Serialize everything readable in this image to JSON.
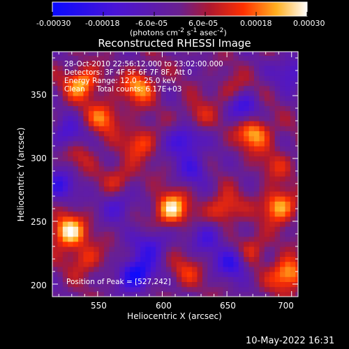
{
  "plot_title": "Reconstructed RHESSI Image",
  "colorbar": {
    "tick_labels": [
      "-0.00030",
      "-0.00018",
      "-6.0e-05",
      "6.0e-05",
      "0.00018",
      "0.00030"
    ],
    "unit_label_html": "(photons cm<sup>-2</sup> s<sup>-1</sup> asec<sup>-2</sup>)",
    "range": [
      -0.0003,
      0.0003
    ]
  },
  "annotations": [
    "28-Oct-2010 22:56:12.000 to 23:02:00.000",
    "Detectors: 3F 4F 5F 6F 7F 8F, Att 0",
    "Energy Range: 12.0 - 25.0 keV",
    "Clean     Total counts: 6.17E+03"
  ],
  "peak_label": "Position of Peak = [527,242]",
  "timestamp": "10-May-2022 16:31",
  "axes": {
    "xlabel": "Heliocentric X (arcsec)",
    "ylabel": "Heliocentric Y (arcsec)",
    "x_ticks": [
      "550",
      "600",
      "650",
      "700"
    ],
    "y_ticks": [
      "200",
      "250",
      "300",
      "350"
    ],
    "xlim": [
      515,
      705
    ],
    "ylim": [
      190,
      385
    ]
  },
  "chart_data": {
    "type": "heatmap",
    "title": "Reconstructed RHESSI Image",
    "xlabel": "Heliocentric X (arcsec)",
    "ylabel": "Heliocentric Y (arcsec)",
    "x_range": [
      515,
      705
    ],
    "y_range": [
      190,
      385
    ],
    "value_range": [
      -0.0003,
      0.0003
    ],
    "colormap": "blue-purple-red-yellow-white",
    "peak_position": [
      527,
      242
    ],
    "bright_sources": [
      {
        "x": 527,
        "y": 242,
        "value": 0.0003
      },
      {
        "x": 538,
        "y": 360,
        "value": 0.00024
      },
      {
        "x": 582,
        "y": 357,
        "value": 0.00022
      },
      {
        "x": 607,
        "y": 260,
        "value": 0.00028
      },
      {
        "x": 690,
        "y": 262,
        "value": 0.00025
      },
      {
        "x": 671,
        "y": 320,
        "value": 0.00024
      },
      {
        "x": 648,
        "y": 260,
        "value": 0.00018
      },
      {
        "x": 697,
        "y": 208,
        "value": 0.00026
      },
      {
        "x": 555,
        "y": 333,
        "value": 0.00018
      },
      {
        "x": 583,
        "y": 313,
        "value": 0.00016
      },
      {
        "x": 655,
        "y": 353,
        "value": 0.00012
      },
      {
        "x": 627,
        "y": 333,
        "value": 0.00012
      },
      {
        "x": 535,
        "y": 305,
        "value": 0.0001
      },
      {
        "x": 540,
        "y": 220,
        "value": 0.00014
      },
      {
        "x": 618,
        "y": 210,
        "value": 0.00011
      },
      {
        "x": 668,
        "y": 228,
        "value": 0.00015
      },
      {
        "x": 567,
        "y": 285,
        "value": 0.00012
      },
      {
        "x": 688,
        "y": 295,
        "value": 0.0001
      }
    ],
    "dark_sources": [
      {
        "x": 580,
        "y": 208,
        "value": -0.0003
      },
      {
        "x": 617,
        "y": 315,
        "value": -0.00022
      },
      {
        "x": 662,
        "y": 342,
        "value": -0.0002
      },
      {
        "x": 655,
        "y": 218,
        "value": -0.00022
      },
      {
        "x": 520,
        "y": 278,
        "value": -0.00018
      },
      {
        "x": 527,
        "y": 318,
        "value": -0.00016
      },
      {
        "x": 592,
        "y": 232,
        "value": -0.00017
      },
      {
        "x": 625,
        "y": 292,
        "value": -0.00014
      },
      {
        "x": 567,
        "y": 263,
        "value": -0.00014
      },
      {
        "x": 700,
        "y": 370,
        "value": -0.00016
      },
      {
        "x": 636,
        "y": 238,
        "value": -0.00015
      }
    ]
  }
}
